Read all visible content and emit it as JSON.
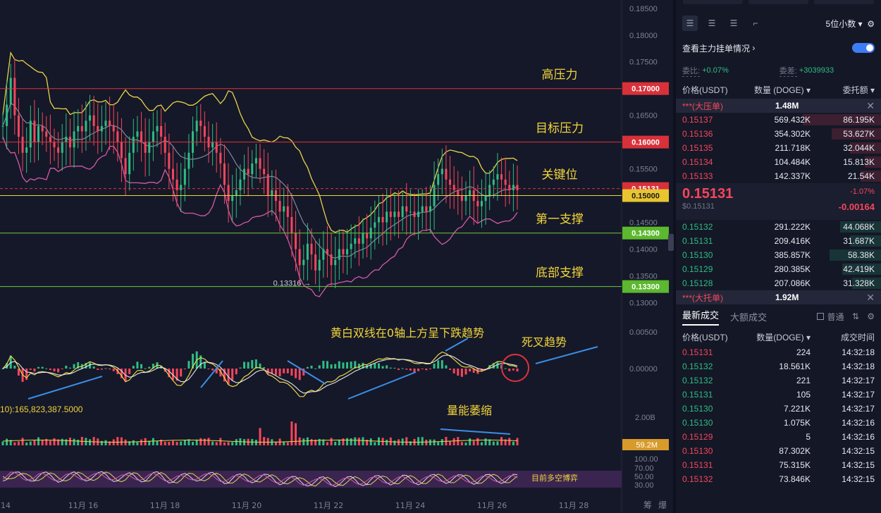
{
  "chart_data": {
    "type": "candlestick",
    "y_axis_labels": [
      "0.18500",
      "0.18000",
      "0.17500",
      "0.17000",
      "0.16500",
      "0.16000",
      "0.15500",
      "0.15131",
      "0.15000",
      "0.14500",
      "0.14300",
      "0.14000",
      "0.13500",
      "0.13300",
      "0.13000"
    ],
    "x_axis_labels": [
      "14",
      "11月 16",
      "11月 18",
      "11月 20",
      "11月 22",
      "11月 24",
      "11月 26",
      "11月 28"
    ],
    "corner_labels": [
      "筹",
      "爆"
    ],
    "price_range": [
      0.129,
      0.1855
    ],
    "close": [
      0.163,
      0.167,
      0.172,
      0.165,
      0.161,
      0.158,
      0.159,
      0.164,
      0.16,
      0.163,
      0.162,
      0.161,
      0.16,
      0.159,
      0.158,
      0.16,
      0.161,
      0.159,
      0.162,
      0.163,
      0.162,
      0.164,
      0.165,
      0.163,
      0.162,
      0.163,
      0.164,
      0.163,
      0.162,
      0.16,
      0.157,
      0.154,
      0.158,
      0.161,
      0.162,
      0.16,
      0.158,
      0.16,
      0.162,
      0.163,
      0.161,
      0.158,
      0.155,
      0.153,
      0.151,
      0.152,
      0.155,
      0.158,
      0.162,
      0.164,
      0.163,
      0.161,
      0.159,
      0.16,
      0.158,
      0.156,
      0.152,
      0.149,
      0.15,
      0.151,
      0.153,
      0.155,
      0.154,
      0.156,
      0.157,
      0.155,
      0.154,
      0.15,
      0.151,
      0.149,
      0.147,
      0.148,
      0.146,
      0.143,
      0.14,
      0.137,
      0.138,
      0.141,
      0.139,
      0.136,
      0.138,
      0.14,
      0.139,
      0.137,
      0.138,
      0.14,
      0.139,
      0.14,
      0.141,
      0.142,
      0.141,
      0.143,
      0.142,
      0.144,
      0.145,
      0.146,
      0.145,
      0.147,
      0.146,
      0.147,
      0.146,
      0.148,
      0.147,
      0.147,
      0.146,
      0.147,
      0.148,
      0.147,
      0.148,
      0.152,
      0.154,
      0.155,
      0.153,
      0.152,
      0.151,
      0.15,
      0.149,
      0.15,
      0.151,
      0.149,
      0.148,
      0.149,
      0.15,
      0.152,
      0.153,
      0.154,
      0.153,
      0.152,
      0.151,
      0.152,
      0.151
    ],
    "horizontal_levels": [
      {
        "price": 0.17,
        "axis_tag": "0.17000",
        "label": "高压力",
        "color": "#e0323c"
      },
      {
        "price": 0.16,
        "axis_tag": "0.16000",
        "label": "目标压力",
        "color": "#e0323c"
      },
      {
        "price": 0.15131,
        "axis_tag": "0.15131",
        "label": "关键位",
        "color": "#e0323c",
        "dashed": true
      },
      {
        "price": 0.15,
        "axis_tag": "0.15000",
        "label": "",
        "color": "#f0d43c"
      },
      {
        "price": 0.143,
        "axis_tag": "0.14300",
        "label": "第一支撑",
        "color": "#6ec83c"
      },
      {
        "price": 0.133,
        "axis_tag": "0.13300",
        "label": "底部支撑",
        "color": "#6ec83c"
      }
    ],
    "low_marker": "0.13316",
    "macd_axis_labels": [
      "0.00500",
      "0.00000"
    ],
    "macd_annotation": "黄白双线在0轴上方呈下跌趋势",
    "dead_cross_annotation": "死叉趋势",
    "volume_label": "10):165,823,387.5000",
    "volume_annotation": "量能萎缩",
    "volume_axis_labels": [
      "2.00B",
      "59.2M"
    ],
    "rsi_axis_labels": [
      "100.00",
      "70.00",
      "50.00",
      "30.00"
    ],
    "rsi_annotation": "目前多空博弈"
  },
  "panel": {
    "decimals": "5位小数",
    "main_order_link": "查看主力挂单情况",
    "ratio_label": "委比:",
    "ratio_value": "+0.07%",
    "diff_label": "委差:",
    "diff_value": "+3039933",
    "headers": {
      "price": "价格(USDT)",
      "qty": "数量 (DOGE)",
      "total": "委托额"
    },
    "ask_banner": {
      "label": "***(大压单)",
      "value": "1.48M"
    },
    "asks": [
      {
        "price": "0.15137",
        "qty": "569.432K",
        "total": "86.195K",
        "bar": 0.38
      },
      {
        "price": "0.15136",
        "qty": "354.302K",
        "total": "53.627K",
        "bar": 0.24
      },
      {
        "price": "0.15135",
        "qty": "211.718K",
        "total": "32.044K",
        "bar": 0.15
      },
      {
        "price": "0.15134",
        "qty": "104.484K",
        "total": "15.813K",
        "bar": 0.08
      },
      {
        "price": "0.15133",
        "qty": "142.337K",
        "total": "21.54K",
        "bar": 0.1
      }
    ],
    "last_price": "0.15131",
    "last_usd": "$0.15131",
    "change_pct": "-1.07%",
    "change_abs": "-0.00164",
    "bids": [
      {
        "price": "0.15132",
        "qty": "291.222K",
        "total": "44.068K",
        "bar": 0.2
      },
      {
        "price": "0.15131",
        "qty": "209.416K",
        "total": "31.687K",
        "bar": 0.15
      },
      {
        "price": "0.15130",
        "qty": "385.857K",
        "total": "58.38K",
        "bar": 0.25
      },
      {
        "price": "0.15129",
        "qty": "280.385K",
        "total": "42.419K",
        "bar": 0.19
      },
      {
        "price": "0.15128",
        "qty": "207.086K",
        "total": "31.328K",
        "bar": 0.14
      }
    ],
    "bid_banner": {
      "label": "***(大托单)",
      "value": "1.92M"
    },
    "tab_latest": "最新成交",
    "tab_large": "大额成交",
    "normal_label": "普通",
    "trade_headers": {
      "price": "价格(USDT)",
      "qty": "数量(DOGE)",
      "time": "成交时间"
    },
    "trades": [
      {
        "price": "0.15131",
        "qty": "224",
        "time": "14:32:18",
        "side": "sell"
      },
      {
        "price": "0.15132",
        "qty": "18.561K",
        "time": "14:32:18",
        "side": "buy"
      },
      {
        "price": "0.15132",
        "qty": "221",
        "time": "14:32:17",
        "side": "buy"
      },
      {
        "price": "0.15131",
        "qty": "105",
        "time": "14:32:17",
        "side": "buy"
      },
      {
        "price": "0.15130",
        "qty": "7.221K",
        "time": "14:32:17",
        "side": "buy"
      },
      {
        "price": "0.15130",
        "qty": "1.075K",
        "time": "14:32:16",
        "side": "buy"
      },
      {
        "price": "0.15129",
        "qty": "5",
        "time": "14:32:16",
        "side": "sell"
      },
      {
        "price": "0.15130",
        "qty": "87.302K",
        "time": "14:32:15",
        "side": "sell"
      },
      {
        "price": "0.15131",
        "qty": "75.315K",
        "time": "14:32:15",
        "side": "sell"
      },
      {
        "price": "0.15132",
        "qty": "73.846K",
        "time": "14:32:15",
        "side": "sell"
      }
    ],
    "colors": {
      "up": "#2ebd85",
      "down": "#f6465d",
      "accent": "#3d7cf5"
    }
  }
}
